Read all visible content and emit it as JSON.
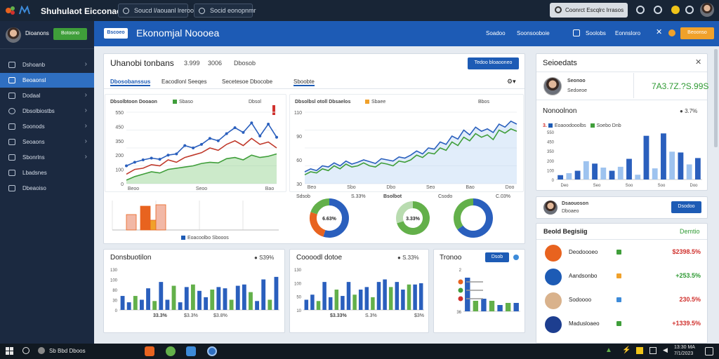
{
  "topbar": {
    "app_name": "Shuhulaot Eicconaorr",
    "search1": "Soucd l/aouanl lreroom",
    "search2": "Socid eonopnmr",
    "button": "Coonrct Escqlrc Irrasos"
  },
  "sidebar": {
    "user": "Dioanons",
    "user_button": "Botoono",
    "items": [
      {
        "label": "Dshoanb",
        "icon": "dashboard-icon"
      },
      {
        "label": "Beoaonsl",
        "icon": "chart-icon"
      },
      {
        "label": "Dodaal",
        "icon": "folder-icon"
      },
      {
        "label": "Dbsolbiostbs",
        "icon": "compass-icon"
      },
      {
        "label": "Soonods",
        "icon": "trend-icon"
      },
      {
        "label": "Seoaons",
        "icon": "users-icon"
      },
      {
        "label": "Sbonrlns",
        "icon": "settings-icon"
      },
      {
        "label": "Lbadsnes",
        "icon": "list-icon"
      },
      {
        "label": "Dbeaoiso",
        "icon": "report-icon"
      }
    ]
  },
  "header": {
    "badge": "Bscoeo",
    "title": "Ekonomjal Noooea",
    "link1": "Soadoo",
    "link2": "Soonsooboie",
    "link3": "Soolobs",
    "link4": "Eonnsloro",
    "orange_button": "Beoonso"
  },
  "overview": {
    "title": "Uhanobi tonbans",
    "stat1": "3.999",
    "stat2": "3006",
    "stat3": "Dbosob",
    "button": "Tedoo bloaooneo",
    "tabs": [
      "Dbosobanssus",
      "Eacodlonl Seeqes",
      "Secetesoe Dbocobe",
      "Sboobte"
    ]
  },
  "chart1": {
    "title": "Dbsolbtoon Dooaon",
    "legend1": "Sbaso",
    "legend2": "Dbsol"
  },
  "chart2": {
    "title": "Dbsolbsl otoll Dbsaelos",
    "legend1": "Sbaee",
    "legend2": "Bbos"
  },
  "mini_bars": {
    "legend": "Eoacoolbo Sbooos"
  },
  "donuts": {
    "label1": "Sdsob",
    "label1b": "S.33%",
    "center1": "6.63%",
    "label2": "Bsolbot",
    "center2": "3.33%",
    "label3": "Csodo",
    "label3b": "C.03%"
  },
  "card_bottom1": {
    "title": "Donsbuotilon",
    "badge": "S39%",
    "footer1": "33.3%",
    "footer2": "$3.3%",
    "footer3": "$3.8%"
  },
  "card_bottom2": {
    "title": "Coooodl dotoe",
    "badge": "S.33%",
    "footer1": "$3.33%",
    "footer2": "S.3%",
    "footer3": "$3%"
  },
  "card_bottom3": {
    "title": "Tronoo",
    "button": "Dsob"
  },
  "right_summary": {
    "title": "Seioedats",
    "person": "Seonoo",
    "person_sub": "Sedoeoe",
    "value": "7A3.7Z.?S.99S",
    "section": "Nonoolnon",
    "section_badge": "3.7%",
    "legend1": "Eoaoodooolbs",
    "legend2": "Soebo Dnb"
  },
  "right_person": {
    "name": "Dsaouoson",
    "sub": "Dboaeo",
    "button": "Dsodoo"
  },
  "right_list": {
    "title": "Beold Begisiig",
    "right_title": "Demtio",
    "rows": [
      {
        "name": "Deodoooeo",
        "value": "$2398.5%",
        "color": "#e8631f",
        "sq": "#3f9e3a",
        "vcolor": "#d0312d"
      },
      {
        "name": "Aandsonbo",
        "value": "+253.5%",
        "color": "#1d5bb5",
        "sq": "#f0a12b",
        "vcolor": "#2f9a34"
      },
      {
        "name": "Sodoooo",
        "value": "230.5%",
        "color": "#d9b28c",
        "sq": "#3d8bd9",
        "vcolor": "#d0312d"
      },
      {
        "name": "Madusloaeo",
        "value": "+1339.5%",
        "color": "#1d3e8f",
        "sq": "#3f9e3a",
        "vcolor": "#d0312d"
      }
    ]
  },
  "taskbar": {
    "search": "Sb Bbd Dboos",
    "time": "13:30 MA",
    "date": "7/1/2023"
  },
  "chart_data": [
    {
      "type": "line",
      "id": "chart1",
      "title": "Dbsolbtoon Dooaon",
      "ylim": [
        0,
        600
      ],
      "yticks": [
        "0",
        "100",
        "200",
        "350",
        "450",
        "550"
      ],
      "xticks": [
        "Beoo",
        "Seoo",
        "Bao"
      ],
      "series": [
        {
          "name": "Sbaso",
          "values": [
            150,
            180,
            200,
            215,
            205,
            240,
            250,
            320,
            300,
            330,
            380,
            360,
            420,
            470,
            430,
            510,
            400,
            500,
            390
          ]
        },
        {
          "name": "Dbsol",
          "values": [
            80,
            120,
            130,
            160,
            150,
            200,
            180,
            220,
            240,
            260,
            300,
            280,
            330,
            360,
            320,
            380,
            330,
            350,
            300
          ]
        },
        {
          "values": [
            30,
            60,
            80,
            100,
            90,
            120,
            130,
            140,
            150,
            170,
            180,
            175,
            210,
            220,
            200,
            240,
            220,
            230,
            250
          ]
        }
      ]
    },
    {
      "type": "line",
      "id": "chart2",
      "title": "Dbsolbsl otoll Dbsaelos",
      "ylim": [
        0,
        120
      ],
      "yticks": [
        "30",
        "60",
        "90",
        "110"
      ],
      "xticks": [
        "Beo",
        "Sbo",
        "Dbo",
        "Seo",
        "Bao",
        "Doo"
      ],
      "series": [
        {
          "name": "Sbaee",
          "values": [
            20,
            25,
            22,
            30,
            28,
            35,
            30,
            38,
            33,
            36,
            40,
            37,
            34,
            42,
            40,
            38,
            45,
            43,
            48,
            55,
            50,
            60,
            58,
            70,
            66,
            80,
            75,
            90,
            82,
            95,
            88,
            92,
            86,
            100,
            95,
            105,
            100
          ]
        },
        {
          "name": "Bbos",
          "values": [
            15,
            20,
            18,
            25,
            22,
            30,
            25,
            33,
            28,
            30,
            35,
            30,
            28,
            35,
            33,
            30,
            38,
            36,
            40,
            48,
            44,
            52,
            50,
            60,
            56,
            70,
            64,
            78,
            72,
            84,
            78,
            82,
            74,
            90,
            85,
            92,
            88
          ]
        }
      ]
    },
    {
      "type": "bar",
      "id": "mini_bars",
      "ylim": [
        0,
        100
      ],
      "values": [
        55,
        85,
        35,
        90
      ],
      "colors": [
        "#f2b8a6",
        "#e8631f",
        "#f0a12b",
        "#f2b8a6"
      ]
    },
    {
      "type": "pie",
      "id": "donut1",
      "values": [
        55,
        25,
        20
      ],
      "colors": [
        "#2a5fbd",
        "#e8631f",
        "#63b04a"
      ]
    },
    {
      "type": "pie",
      "id": "donut2",
      "values": [
        70,
        30
      ],
      "colors": [
        "#63b04a",
        "#b9dcb0"
      ]
    },
    {
      "type": "pie",
      "id": "donut3",
      "values": [
        65,
        35
      ],
      "colors": [
        "#2a5fbd",
        "#63b04a"
      ]
    },
    {
      "type": "bar",
      "id": "bars_b1",
      "ylim": [
        0,
        160
      ],
      "yticks": [
        "0",
        "30",
        "80",
        "100",
        "130"
      ],
      "values": [
        55,
        30,
        55,
        40,
        85,
        35,
        110,
        40,
        95,
        30,
        90,
        100,
        75,
        50,
        80,
        90,
        85,
        40,
        95,
        100,
        70,
        35,
        120,
        40,
        130
      ],
      "colors": [
        "#2a5fbd",
        "#63b04a"
      ]
    },
    {
      "type": "bar",
      "id": "bars_b2",
      "ylim": [
        0,
        160
      ],
      "yticks": [
        "10",
        "50",
        "100",
        "130"
      ],
      "values": [
        40,
        60,
        35,
        110,
        50,
        80,
        55,
        110,
        60,
        80,
        90,
        50,
        110,
        120,
        90,
        110,
        80,
        100,
        100,
        105
      ],
      "colors": [
        "#2a5fbd",
        "#63b04a"
      ]
    },
    {
      "type": "bar",
      "id": "bars_b3",
      "ylim": [
        0,
        100
      ],
      "yticks": [
        "36",
        "6",
        "2"
      ],
      "values": [
        80,
        25,
        30,
        25,
        15,
        20,
        20
      ],
      "colors": [
        "#2a5fbd",
        "#63b04a"
      ]
    },
    {
      "type": "bar",
      "id": "bars_right",
      "ylim": [
        0,
        600
      ],
      "yticks": [
        "0",
        "100",
        "200",
        "350",
        "450",
        "550"
      ],
      "xticks": [
        "Deo",
        "Seo",
        "Soo",
        "Soo",
        "Doo"
      ],
      "values": [
        55,
        80,
        110,
        230,
        200,
        150,
        110,
        160,
        260,
        60,
        550,
        140,
        580,
        350,
        340,
        190,
        270
      ],
      "colors": [
        "#2a5fbd",
        "#9ec3ef"
      ]
    }
  ]
}
